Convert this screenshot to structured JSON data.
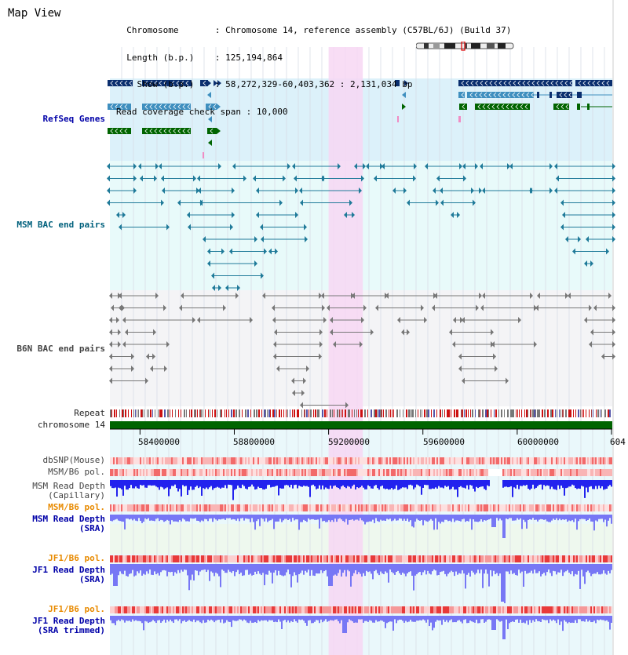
{
  "title": "Map View",
  "info": {
    "chromosome_label": "Chromosome",
    "chromosome_value": "Chromosome 14, reference assembly (C57BL/6J) (Build 37)",
    "length_label": "Length (b.p.)",
    "length_value": "125,194,864",
    "show_label": "Show (b.p.)",
    "show_value": "58,272,329-60,403,362 : 2,131,034 bp",
    "coverage_label": "Read coverage check span",
    "coverage_value": "10,000"
  },
  "tracks": {
    "refseq": "RefSeq Genes",
    "msm_bac": "MSM BAC end pairs",
    "b6n_bac": "B6N BAC end pairs",
    "repeat": "Repeat",
    "chromosome": "chromosome 14",
    "dbsnp": "dbSNP(Mouse)",
    "msm_pol_cap": "MSM/B6 pol.",
    "msm_depth_cap_1": "MSM Read Depth",
    "msm_depth_cap_2": "(Capillary)",
    "msm_pol_sra": "MSM/B6 pol.",
    "msm_depth_sra_1": "MSM Read Depth",
    "msm_depth_sra_2": "(SRA)",
    "jf1_pol": "JF1/B6 pol.",
    "jf1_depth_1": "JF1 Read Depth",
    "jf1_depth_2": "(SRA)",
    "jf1_pol_trim": "JF1/B6 pol.",
    "jf1_depth_trim_1": "JF1 Read Depth",
    "jf1_depth_trim_2": "(SRA trimmed)"
  },
  "axis": {
    "start": 58272329,
    "end": 60403362,
    "highlight": [
      59200000,
      59345000
    ],
    "ticks": [
      "58400000",
      "58800000",
      "59200000",
      "59600000",
      "60000000",
      "604"
    ]
  },
  "colors": {
    "refseq_dark": "#0a2e6e",
    "refseq_mid": "#3f8fbf",
    "refseq_green": "#006400",
    "msm_bac": "#1f7a99",
    "b6n_bac": "#777777",
    "highlight": "#f7d7f3",
    "chromosome": "#006400",
    "depth_capillary": "#2222ee",
    "depth_sra": "#7777f5"
  }
}
